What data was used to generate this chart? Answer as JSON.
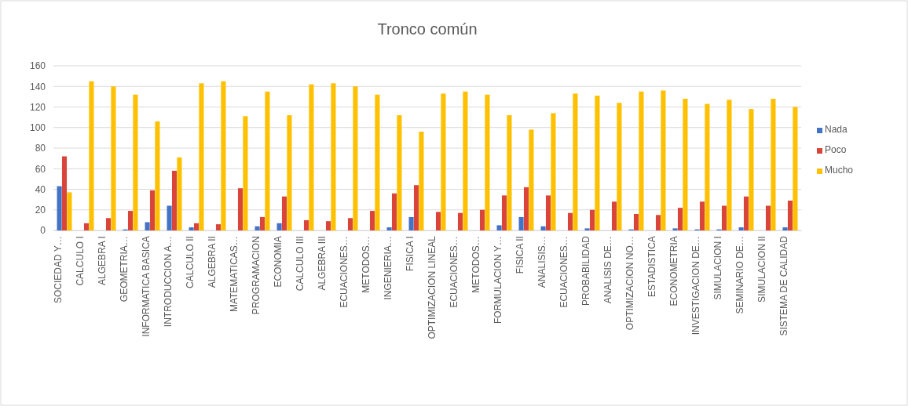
{
  "chart_data": {
    "type": "bar",
    "title": "Tronco común",
    "categories": [
      "SOCIEDAD Y…",
      "CALCULO I",
      "ALGEBRA I",
      "GEOMETRIA…",
      "INFORMATICA BASICA",
      "INTRODUCCION A…",
      "CALCULO II",
      "ALGEBRA II",
      "MATEMATICAS…",
      "PROGRAMACION",
      "ECONOMIA",
      "CALCULO III",
      "ALGEBRA III",
      "ECUACIONES…",
      "METODOS…",
      "INGENIERIA…",
      "FISICA I",
      "OPTIMIZACION LINEAL",
      "ECUACIONES…",
      "METODOS…",
      "FORMULACION Y…",
      "FISICA II",
      "ANALISIS…",
      "ECUACIONES…",
      "PROBABILIDAD",
      "ANALISIS DE…",
      "OPTIMIZACION NO…",
      "ESTADISTICA",
      "ECONOMETRIA",
      "INVESTIGACION DE…",
      "SIMULACION I",
      "SEMINARIO DE…",
      "SIMULACION II",
      "SISTEMA DE CALIDAD"
    ],
    "series": [
      {
        "name": "Nada",
        "color": "#4472c4",
        "values": [
          43,
          0,
          0,
          1,
          8,
          24,
          3,
          0,
          0,
          4,
          7,
          0,
          0,
          0,
          0,
          3,
          13,
          0,
          0,
          0,
          5,
          13,
          4,
          0,
          2,
          0,
          1,
          0,
          2,
          1,
          1,
          3,
          0,
          3
        ]
      },
      {
        "name": "Poco",
        "color": "#d9453b",
        "values": [
          72,
          7,
          12,
          19,
          39,
          58,
          7,
          6,
          41,
          13,
          33,
          10,
          9,
          12,
          19,
          36,
          44,
          18,
          17,
          20,
          34,
          42,
          34,
          17,
          20,
          28,
          16,
          15,
          22,
          28,
          24,
          33,
          24,
          29
        ]
      },
      {
        "name": "Mucho",
        "color": "#ffc000",
        "values": [
          37,
          145,
          140,
          132,
          106,
          71,
          143,
          145,
          111,
          135,
          112,
          142,
          143,
          140,
          132,
          112,
          96,
          133,
          135,
          132,
          112,
          98,
          114,
          133,
          131,
          124,
          135,
          136,
          128,
          123,
          127,
          118,
          128,
          120
        ]
      }
    ],
    "ylim": [
      0,
      160
    ],
    "yticks": [
      0,
      20,
      40,
      60,
      80,
      100,
      120,
      140,
      160
    ],
    "grid": "y",
    "legend": "right"
  }
}
